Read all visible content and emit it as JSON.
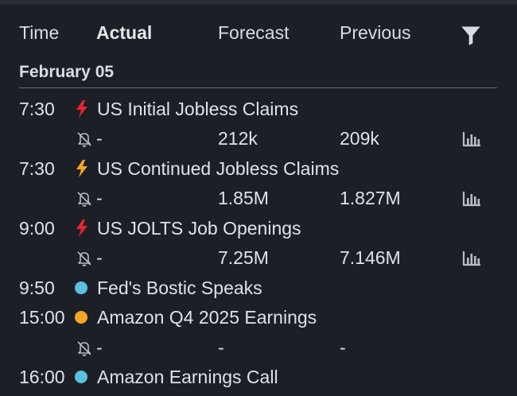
{
  "header": {
    "time": "Time",
    "actual": "Actual",
    "forecast": "Forecast",
    "previous": "Previous",
    "filter_icon": "filter-icon"
  },
  "date": "February 05",
  "colors": {
    "high": "#e8262d",
    "medium": "#f5a623",
    "speech": "#5bc0de",
    "earnings": "#f5a623",
    "background": "#1c1f26",
    "text": "#dfe2e8"
  },
  "events": [
    {
      "time": "7:30",
      "name": "US Initial Jobless Claims",
      "impact": "high",
      "values": {
        "actual": "-",
        "forecast": "212k",
        "previous": "209k"
      },
      "has_chart": true
    },
    {
      "time": "7:30",
      "name": "US Continued Jobless Claims",
      "impact": "medium",
      "values": {
        "actual": "-",
        "forecast": "1.85M",
        "previous": "1.827M"
      },
      "has_chart": true
    },
    {
      "time": "9:00",
      "name": "US JOLTS Job Openings",
      "impact": "high",
      "values": {
        "actual": "-",
        "forecast": "7.25M",
        "previous": "7.146M"
      },
      "has_chart": true
    },
    {
      "time": "9:50",
      "name": "Fed's Bostic Speaks",
      "impact": "speech"
    },
    {
      "time": "15:00",
      "name": "Amazon Q4 2025 Earnings",
      "impact": "earnings",
      "values": {
        "actual": "-",
        "forecast": "-",
        "previous": "-"
      },
      "has_chart": false
    },
    {
      "time": "16:00",
      "name": "Amazon Earnings Call",
      "impact": "speech"
    }
  ]
}
